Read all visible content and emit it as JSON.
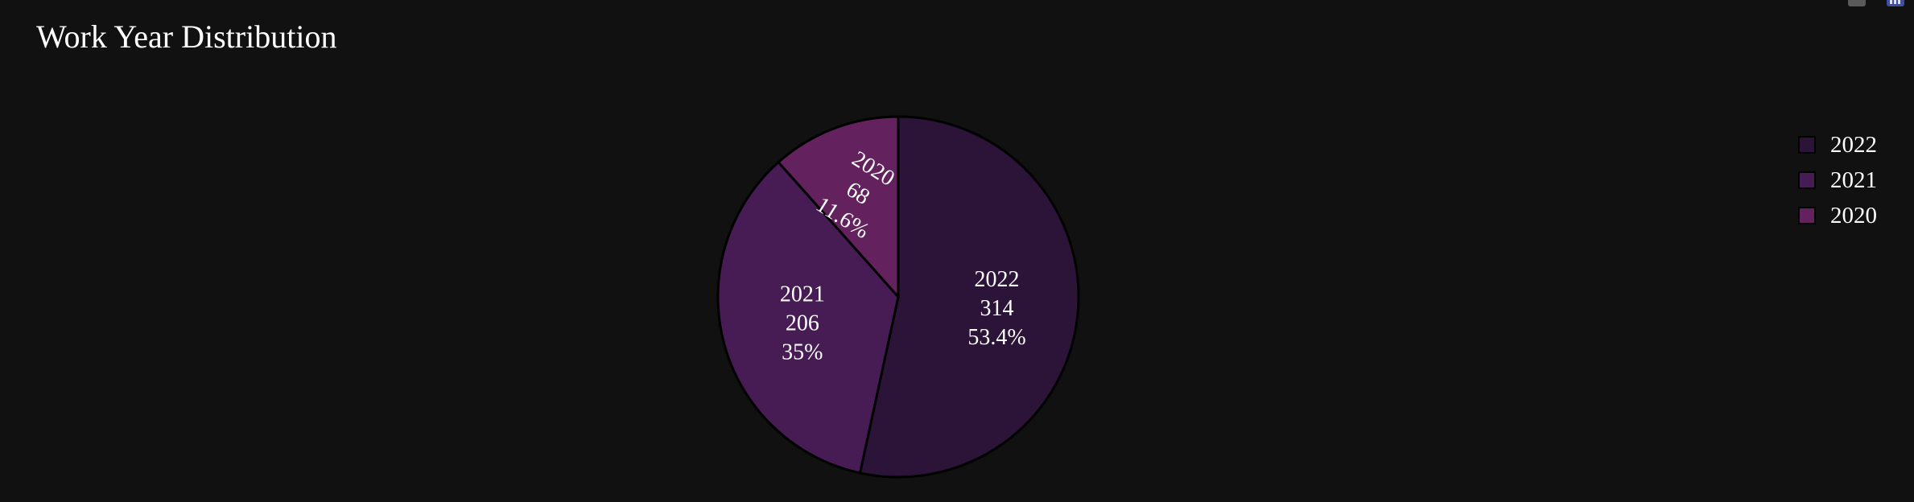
{
  "chart_data": {
    "type": "pie",
    "title": "Work Year Distribution",
    "categories": [
      "2022",
      "2021",
      "2020"
    ],
    "values": [
      314,
      206,
      68
    ],
    "percent_labels": [
      "53.4%",
      "35%",
      "11.6%"
    ],
    "colors": [
      "#2c1439",
      "#471c55",
      "#63215e"
    ],
    "legend": {
      "placement": "right",
      "entries": [
        "2022",
        "2021",
        "2020"
      ]
    },
    "slice_labels": [
      {
        "name": "2022",
        "value": "314",
        "percent": "53.4%"
      },
      {
        "name": "2021",
        "value": "206",
        "percent": "35%"
      },
      {
        "name": "2020",
        "value": "68",
        "percent": "11.6%"
      }
    ]
  }
}
